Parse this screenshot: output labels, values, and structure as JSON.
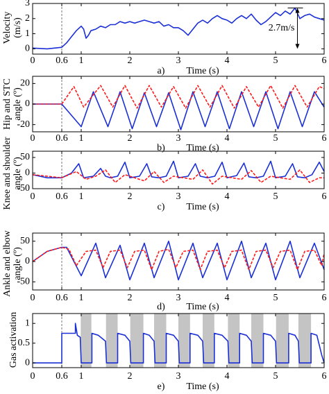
{
  "chart_data": [
    {
      "type": "line",
      "panel": "a)",
      "xlabel": "Time (s)",
      "ylabel": [
        "Velocity",
        "(m/s)"
      ],
      "xlim": [
        0,
        6
      ],
      "xticks": [
        0,
        0.6,
        1,
        2,
        3,
        4,
        5,
        6
      ],
      "ylim": [
        -0.35,
        3
      ],
      "yticks": [
        0,
        1,
        2,
        3
      ],
      "marker_line": 0.6,
      "annotation": {
        "text": "2.7m/s",
        "x": 5.45,
        "y_from": 0,
        "y_to": 2.7
      },
      "series": [
        {
          "color": "#1a2fd6",
          "dash": false,
          "x": [
            0,
            0.3,
            0.6,
            0.7,
            0.8,
            0.9,
            1.0,
            1.05,
            1.1,
            1.15,
            1.2,
            1.3,
            1.4,
            1.5,
            1.6,
            1.7,
            1.8,
            1.9,
            2.0,
            2.1,
            2.2,
            2.3,
            2.4,
            2.5,
            2.6,
            2.7,
            2.8,
            2.9,
            3.0,
            3.1,
            3.2,
            3.3,
            3.4,
            3.5,
            3.6,
            3.7,
            3.8,
            3.9,
            4.0,
            4.1,
            4.2,
            4.3,
            4.4,
            4.5,
            4.6,
            4.7,
            4.8,
            4.9,
            5.0,
            5.1,
            5.2,
            5.3,
            5.4,
            5.5,
            5.6,
            5.7,
            5.8,
            5.9,
            6.0
          ],
          "values": [
            0.05,
            0,
            0.1,
            0.4,
            0.8,
            1.2,
            1.5,
            1.3,
            0.7,
            0.9,
            1.2,
            1.3,
            1.5,
            1.4,
            1.6,
            1.6,
            1.8,
            1.7,
            1.8,
            1.7,
            1.8,
            1.9,
            1.8,
            1.7,
            1.8,
            1.5,
            1.6,
            1.4,
            1.4,
            1.2,
            0.9,
            1.3,
            1.7,
            1.9,
            1.7,
            2.0,
            2.2,
            2.0,
            1.9,
            1.7,
            2.0,
            2.2,
            2.0,
            2.3,
            1.9,
            1.6,
            1.8,
            2.1,
            2.4,
            2.2,
            2.5,
            2.3,
            2.7,
            2.0,
            2.2,
            2.3,
            2.1,
            2.0,
            1.9
          ]
        }
      ]
    },
    {
      "type": "line",
      "panel": "b)",
      "xlabel": "Time (s)",
      "ylabel": [
        "Hip and STC",
        "angle (º)"
      ],
      "xlim": [
        0,
        6
      ],
      "xticks": [
        0,
        0.6,
        1,
        2,
        3,
        4,
        5,
        6
      ],
      "ylim": [
        -27,
        27
      ],
      "yticks": [
        -20,
        0,
        20
      ],
      "marker_line": 0.6,
      "series": [
        {
          "color": "#1a2fd6",
          "dash": false,
          "x": [
            0,
            0.6,
            1.0,
            1.25,
            1.55,
            1.8,
            2.05,
            2.3,
            2.55,
            2.8,
            3.05,
            3.3,
            3.55,
            3.8,
            4.05,
            4.3,
            4.55,
            4.8,
            5.05,
            5.3,
            5.55,
            5.8,
            6.0
          ],
          "values": [
            0,
            0,
            -22,
            12,
            -22,
            12,
            -24,
            11,
            -22,
            11,
            -25,
            12,
            -22,
            12,
            -24,
            12,
            -22,
            12,
            -24,
            12,
            -22,
            12,
            -3
          ]
        },
        {
          "color": "#ff1a1a",
          "dash": true,
          "x": [
            0,
            0.6,
            0.85,
            1.05,
            1.4,
            1.65,
            1.9,
            2.15,
            2.4,
            2.65,
            2.9,
            3.15,
            3.4,
            3.65,
            3.9,
            4.15,
            4.4,
            4.65,
            4.9,
            5.15,
            5.4,
            5.65,
            5.9,
            6.0
          ],
          "values": [
            0,
            0,
            17,
            -3,
            18,
            -3,
            18,
            -4,
            18,
            -3,
            17,
            -4,
            18,
            -3,
            18,
            -4,
            17,
            -3,
            18,
            -4,
            18,
            -3,
            17,
            15
          ]
        }
      ]
    },
    {
      "type": "line",
      "panel": "c)",
      "xlabel": "Time (s)",
      "ylabel": [
        "Knee and shoulder",
        "angle (º)"
      ],
      "xlim": [
        0,
        6
      ],
      "xticks": [
        0,
        0.6,
        1,
        2,
        3,
        4,
        5,
        6
      ],
      "ylim": [
        -50,
        70
      ],
      "yticks": [
        -50,
        0,
        50
      ],
      "marker_line": 0.6,
      "series": [
        {
          "color": "#1a2fd6",
          "dash": false,
          "x": [
            0,
            0.3,
            0.6,
            0.8,
            0.95,
            1.05,
            1.25,
            1.4,
            1.5,
            1.6,
            1.75,
            1.9,
            2.0,
            2.2,
            2.35,
            2.45,
            2.6,
            2.75,
            2.9,
            3.0,
            3.2,
            3.35,
            3.45,
            3.6,
            3.75,
            3.9,
            4.0,
            4.2,
            4.35,
            4.45,
            4.6,
            4.75,
            4.9,
            5.0,
            5.2,
            5.35,
            5.45,
            5.6,
            5.75,
            5.9,
            6.0
          ],
          "values": [
            -5,
            -15,
            -15,
            0,
            30,
            -15,
            -10,
            15,
            -10,
            -15,
            -10,
            35,
            -15,
            -10,
            30,
            -12,
            -15,
            -10,
            38,
            -15,
            -10,
            30,
            -10,
            -15,
            -10,
            35,
            -15,
            -8,
            32,
            -12,
            -15,
            -10,
            38,
            -15,
            -10,
            30,
            -12,
            -15,
            -5,
            35,
            5
          ]
        },
        {
          "color": "#ff1a1a",
          "dash": true,
          "x": [
            0,
            0.6,
            0.9,
            1.1,
            1.3,
            1.5,
            1.7,
            1.9,
            2.1,
            2.3,
            2.5,
            2.7,
            2.9,
            3.1,
            3.3,
            3.5,
            3.7,
            3.9,
            4.1,
            4.3,
            4.5,
            4.7,
            4.9,
            5.1,
            5.3,
            5.5,
            5.7,
            5.9,
            6.0
          ],
          "values": [
            -5,
            -15,
            5,
            -20,
            -10,
            10,
            -30,
            -5,
            -15,
            -25,
            5,
            -30,
            -10,
            -15,
            -20,
            10,
            -35,
            -10,
            -15,
            -20,
            8,
            -30,
            -10,
            -15,
            -20,
            10,
            -30,
            -15,
            -15
          ]
        }
      ]
    },
    {
      "type": "line",
      "panel": "d)",
      "xlabel": "Time (s)",
      "ylabel": [
        "Ankle and elbow",
        "angle (º)"
      ],
      "xlim": [
        0,
        6
      ],
      "xticks": [
        0,
        0.6,
        1,
        2,
        3,
        4,
        5,
        6
      ],
      "ylim": [
        -70,
        70
      ],
      "yticks": [
        -50,
        0,
        50
      ],
      "marker_line": 0.6,
      "series": [
        {
          "color": "#1a2fd6",
          "dash": false,
          "x": [
            0,
            0.3,
            0.6,
            0.7,
            1.0,
            1.3,
            1.5,
            1.8,
            2.0,
            2.3,
            2.5,
            2.8,
            3.0,
            3.3,
            3.5,
            3.8,
            4.0,
            4.3,
            4.5,
            4.8,
            5.0,
            5.3,
            5.5,
            5.8,
            6.0
          ],
          "values": [
            0,
            25,
            35,
            35,
            -35,
            45,
            -40,
            40,
            -45,
            45,
            -40,
            50,
            -45,
            45,
            -40,
            45,
            -45,
            50,
            -40,
            45,
            -45,
            50,
            -40,
            45,
            -20
          ]
        },
        {
          "color": "#ff1a1a",
          "dash": true,
          "x": [
            0,
            0.3,
            0.6,
            0.75,
            0.9,
            1.1,
            1.3,
            1.45,
            1.6,
            1.8,
            1.95,
            2.1,
            2.3,
            2.45,
            2.6,
            2.8,
            2.95,
            3.1,
            3.3,
            3.45,
            3.6,
            3.8,
            3.95,
            4.1,
            4.3,
            4.45,
            4.6,
            4.8,
            4.95,
            5.1,
            5.3,
            5.45,
            5.6,
            5.8,
            5.95,
            6.0
          ],
          "values": [
            0,
            25,
            35,
            30,
            -10,
            25,
            28,
            -15,
            25,
            28,
            -15,
            25,
            28,
            -20,
            25,
            30,
            -15,
            25,
            28,
            -20,
            25,
            28,
            -15,
            25,
            28,
            -20,
            25,
            28,
            -15,
            25,
            28,
            -20,
            25,
            28,
            -10,
            20
          ]
        }
      ]
    },
    {
      "type": "line",
      "panel": "e)",
      "xlabel": "Time (s)",
      "ylabel": [
        "Gas activation"
      ],
      "xlim": [
        0,
        6
      ],
      "xticks": [
        0,
        0.6,
        1,
        2,
        3,
        4,
        5,
        6
      ],
      "ylim": [
        -0.12,
        1.25
      ],
      "yticks": [
        0,
        0.5,
        1
      ],
      "marker_line": 0.6,
      "shaded_regions": [
        [
          0.99,
          1.21
        ],
        [
          1.51,
          1.75
        ],
        [
          2.01,
          2.28
        ],
        [
          2.5,
          2.75
        ],
        [
          3.0,
          3.24
        ],
        [
          3.5,
          3.74
        ],
        [
          4.02,
          4.26
        ],
        [
          4.5,
          4.75
        ],
        [
          5.01,
          5.27
        ],
        [
          5.47,
          5.73
        ]
      ],
      "series": [
        {
          "color": "#1a2fd6",
          "dash": false,
          "x": [
            0,
            0.6,
            0.6,
            0.88,
            0.88,
            0.92,
            0.98,
            1.0,
            1.22,
            1.22,
            1.35,
            1.5,
            1.52,
            1.75,
            1.75,
            1.9,
            2.0,
            2.02,
            2.28,
            2.28,
            2.4,
            2.5,
            2.52,
            2.75,
            2.75,
            2.9,
            3.0,
            3.02,
            3.24,
            3.24,
            3.4,
            3.5,
            3.52,
            3.74,
            3.74,
            3.9,
            4.02,
            4.04,
            4.26,
            4.26,
            4.4,
            4.5,
            4.52,
            4.75,
            4.75,
            4.9,
            5.0,
            5.02,
            5.27,
            5.27,
            5.4,
            5.47,
            5.49,
            5.73,
            5.73,
            5.85,
            5.95,
            6.0
          ],
          "values": [
            0,
            0,
            0.75,
            0.75,
            1.0,
            0.7,
            0.65,
            0,
            0,
            0.75,
            0.7,
            0.55,
            0,
            0,
            0.75,
            0.7,
            0.55,
            0,
            0,
            0.75,
            0.7,
            0.55,
            0,
            0,
            0.75,
            0.7,
            0.55,
            0,
            0,
            0.75,
            0.7,
            0.55,
            0,
            0,
            0.75,
            0.7,
            0.55,
            0,
            0,
            0.75,
            0.7,
            0.55,
            0,
            0,
            0.75,
            0.7,
            0.55,
            0,
            0,
            0.75,
            0.7,
            0.55,
            0,
            0,
            0.75,
            0.7,
            0.2,
            0
          ]
        }
      ]
    }
  ]
}
